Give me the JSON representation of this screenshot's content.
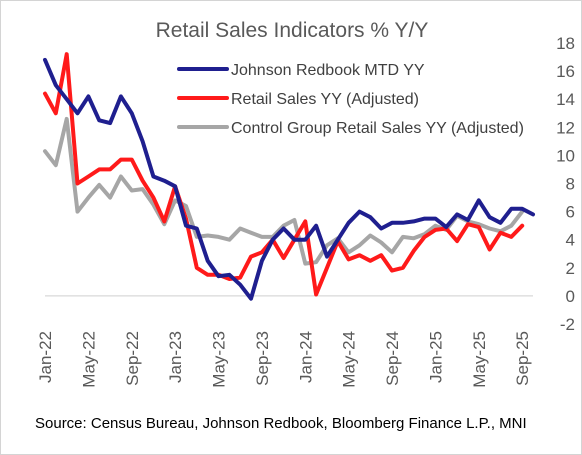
{
  "source": "Source: Census Bureau, Johnson Redbook, Bloomberg Finance L.P., MNI",
  "colors": {
    "redbook": "#1f1f8f",
    "retail": "#ff1a1a",
    "control": "#a6a6a6",
    "axis": "#d9d9d9",
    "text": "#595959"
  },
  "chart_data": {
    "type": "line",
    "title": "Retail Sales Indicators % Y/Y",
    "ylim": [
      -2,
      18
    ],
    "yticks": [
      18,
      16,
      14,
      12,
      10,
      8,
      6,
      4,
      2,
      0,
      -2
    ],
    "y_axis_position": "right",
    "legend_position": "top-right",
    "grid": false,
    "x_ticks": [
      "Jan-22",
      "May-22",
      "Sep-22",
      "Jan-23",
      "May-23",
      "Sep-23",
      "Jan-24",
      "May-24",
      "Sep-24",
      "Jan-25",
      "May-25",
      "Sep-25"
    ],
    "x_range": [
      "2022-01",
      "2025-10"
    ],
    "series": [
      {
        "name": "Johnson Redbook MTD YY",
        "color": "#1f1f8f",
        "x": [
          "2022-01",
          "2022-02",
          "2022-03",
          "2022-04",
          "2022-05",
          "2022-06",
          "2022-07",
          "2022-08",
          "2022-09",
          "2022-10",
          "2022-11",
          "2022-12",
          "2023-01",
          "2023-02",
          "2023-03",
          "2023-04",
          "2023-05",
          "2023-06",
          "2023-07",
          "2023-08",
          "2023-09",
          "2023-10",
          "2023-11",
          "2023-12",
          "2024-01",
          "2024-02",
          "2024-03",
          "2024-04",
          "2024-05",
          "2024-06",
          "2024-07",
          "2024-08",
          "2024-09",
          "2024-10",
          "2024-11",
          "2024-12",
          "2025-01",
          "2025-02",
          "2025-03",
          "2025-04",
          "2025-05",
          "2025-06",
          "2025-07",
          "2025-08",
          "2025-09",
          "2025-10"
        ],
        "y": [
          16.8,
          15.0,
          14.0,
          13.0,
          14.2,
          12.5,
          12.3,
          14.2,
          13.0,
          11.0,
          8.5,
          8.2,
          7.8,
          5.0,
          4.8,
          2.5,
          1.4,
          1.5,
          0.8,
          -0.2,
          2.5,
          4.0,
          4.8,
          4.0,
          4.0,
          5.0,
          2.8,
          4.0,
          5.2,
          6.0,
          5.6,
          4.8,
          5.2,
          5.2,
          5.3,
          5.5,
          5.5,
          4.9,
          5.8,
          5.4,
          6.8,
          5.6,
          5.2,
          6.2,
          6.2,
          5.8
        ]
      },
      {
        "name": "Retail Sales YY (Adjusted)",
        "color": "#ff1a1a",
        "x": [
          "2022-01",
          "2022-02",
          "2022-03",
          "2022-04",
          "2022-05",
          "2022-06",
          "2022-07",
          "2022-08",
          "2022-09",
          "2022-10",
          "2022-11",
          "2022-12",
          "2023-01",
          "2023-02",
          "2023-03",
          "2023-04",
          "2023-05",
          "2023-06",
          "2023-07",
          "2023-08",
          "2023-09",
          "2023-10",
          "2023-11",
          "2023-12",
          "2024-01",
          "2024-02",
          "2024-03",
          "2024-04",
          "2024-05",
          "2024-06",
          "2024-07",
          "2024-08",
          "2024-09",
          "2024-10",
          "2024-11",
          "2024-12",
          "2025-01",
          "2025-02",
          "2025-03",
          "2025-04",
          "2025-05",
          "2025-06",
          "2025-07",
          "2025-08",
          "2025-09"
        ],
        "y": [
          14.4,
          13.0,
          17.2,
          8.0,
          8.5,
          9.0,
          9.0,
          9.7,
          9.7,
          8.2,
          7.0,
          5.3,
          7.8,
          5.5,
          2.0,
          1.5,
          1.5,
          1.2,
          1.3,
          2.8,
          3.1,
          4.0,
          2.7,
          4.0,
          5.3,
          0.1,
          2.0,
          3.9,
          2.6,
          2.9,
          2.5,
          2.9,
          1.8,
          2.0,
          3.2,
          4.2,
          4.7,
          4.8,
          3.9,
          5.1,
          4.9,
          3.3,
          4.5,
          4.2,
          5.0
        ]
      },
      {
        "name": "Control Group Retail Sales YY (Adjusted)",
        "color": "#a6a6a6",
        "x": [
          "2022-01",
          "2022-02",
          "2022-03",
          "2022-04",
          "2022-05",
          "2022-06",
          "2022-07",
          "2022-08",
          "2022-09",
          "2022-10",
          "2022-11",
          "2022-12",
          "2023-01",
          "2023-02",
          "2023-03",
          "2023-04",
          "2023-05",
          "2023-06",
          "2023-07",
          "2023-08",
          "2023-09",
          "2023-10",
          "2023-11",
          "2023-12",
          "2024-01",
          "2024-02",
          "2024-03",
          "2024-04",
          "2024-05",
          "2024-06",
          "2024-07",
          "2024-08",
          "2024-09",
          "2024-10",
          "2024-11",
          "2024-12",
          "2025-01",
          "2025-02",
          "2025-03",
          "2025-04",
          "2025-05",
          "2025-06",
          "2025-07",
          "2025-08",
          "2025-09"
        ],
        "y": [
          10.3,
          9.3,
          12.6,
          6.0,
          7.0,
          7.9,
          7.0,
          8.5,
          7.5,
          7.6,
          6.5,
          5.1,
          6.8,
          6.4,
          4.2,
          4.3,
          4.2,
          4.0,
          4.8,
          4.5,
          4.2,
          4.2,
          5.0,
          5.4,
          2.3,
          2.4,
          3.6,
          4.1,
          3.1,
          3.6,
          4.3,
          3.8,
          3.1,
          4.2,
          4.1,
          4.4,
          5.0,
          4.7,
          5.7,
          5.3,
          5.1,
          4.8,
          4.6,
          5.0,
          6.0
        ]
      }
    ]
  }
}
